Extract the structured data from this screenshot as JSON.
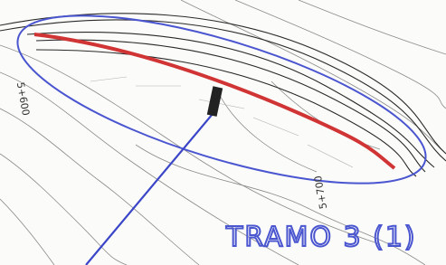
{
  "stations": [
    "5+600",
    "5+700"
  ],
  "annotation": "TRAMO 3 (1)"
}
